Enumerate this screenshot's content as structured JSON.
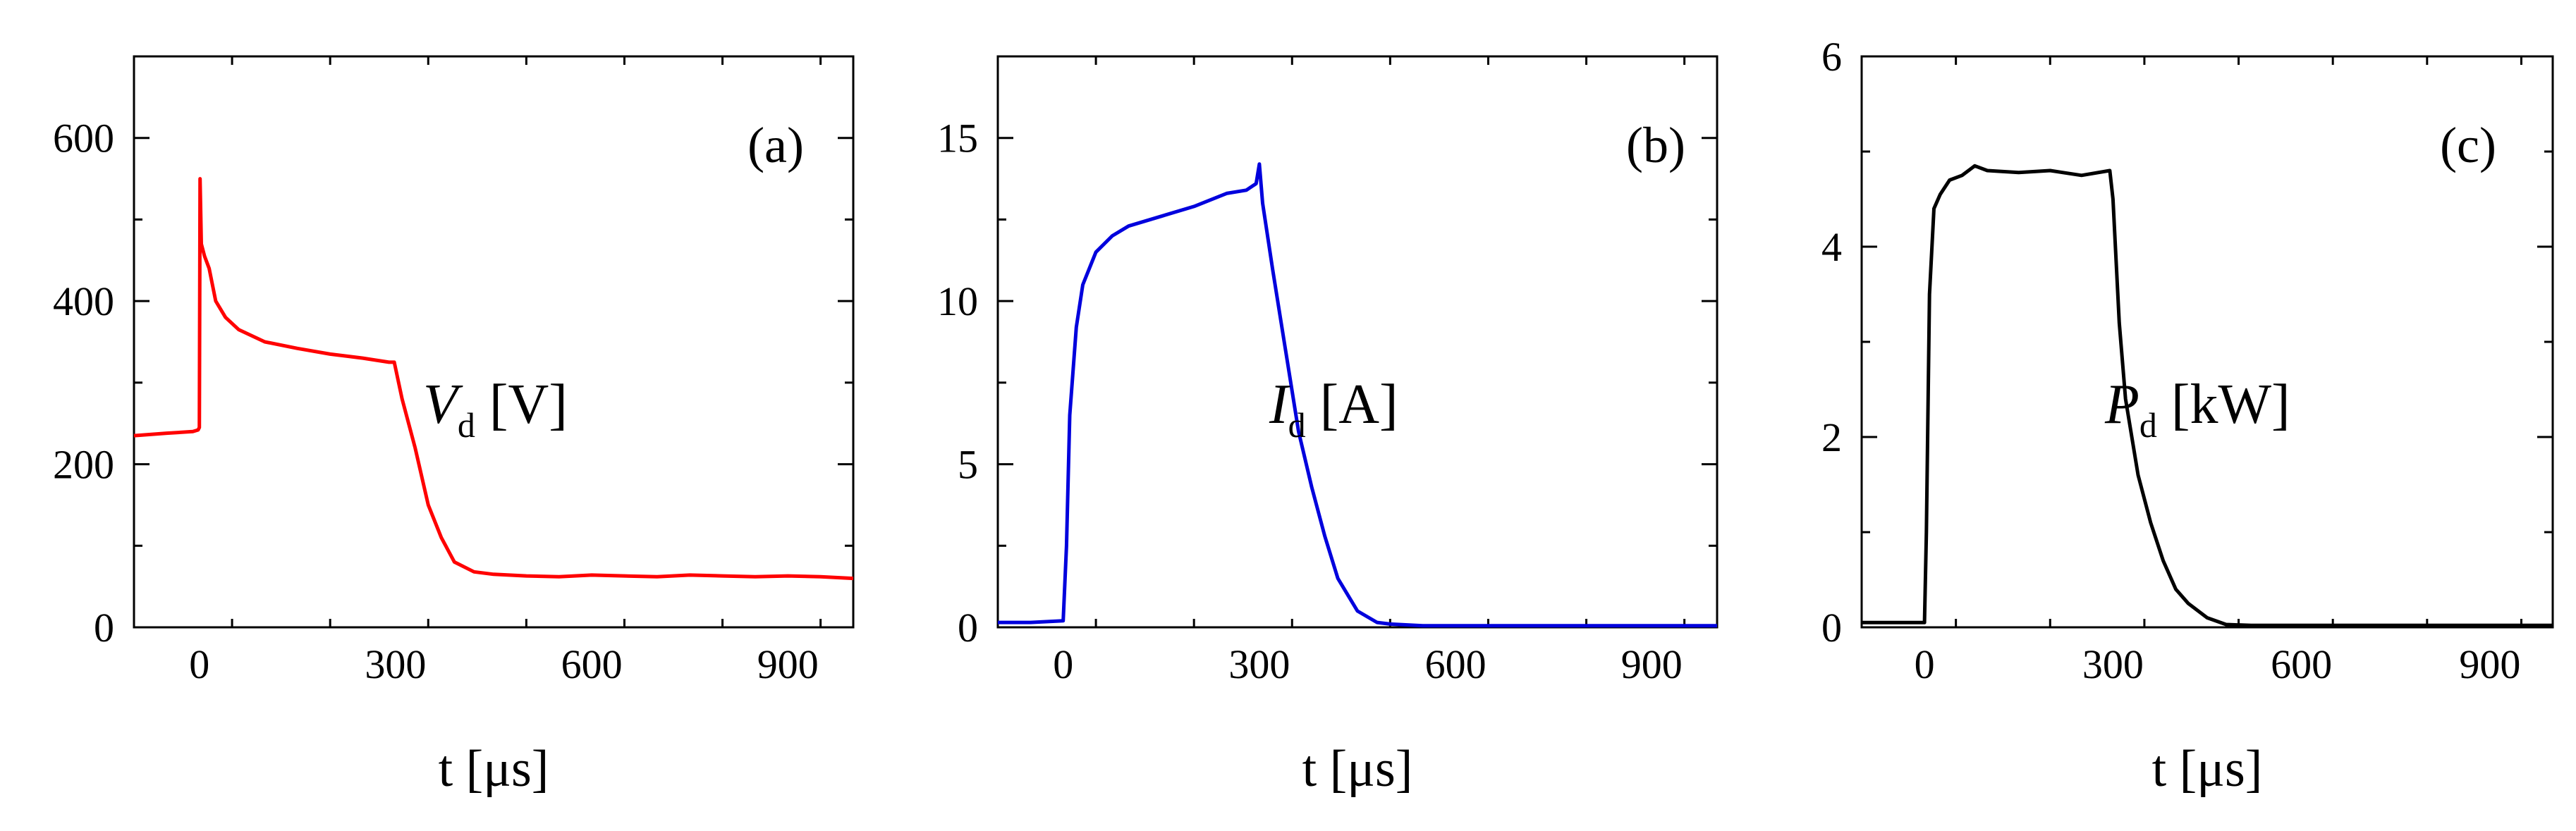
{
  "chart_data": [
    {
      "type": "line",
      "panel_label": "(a)",
      "annotation": {
        "symbol": "V",
        "subscript": "d",
        "unit": "[V]"
      },
      "xlabel": "t [μs]",
      "ylabel": "",
      "xlim": [
        -100,
        1000
      ],
      "ylim": [
        0,
        700
      ],
      "xticks": [
        0,
        300,
        600,
        900
      ],
      "yticks": [
        0,
        200,
        400,
        600
      ],
      "color": "#ff0000",
      "series": [
        {
          "name": "Vd",
          "x": [
            -100,
            -50,
            -10,
            -2,
            0,
            1,
            3,
            8,
            15,
            25,
            40,
            60,
            100,
            150,
            200,
            250,
            290,
            298,
            310,
            330,
            350,
            370,
            390,
            420,
            450,
            500,
            550,
            600,
            650,
            700,
            750,
            800,
            850,
            900,
            950,
            1000
          ],
          "y": [
            235,
            238,
            240,
            242,
            245,
            550,
            470,
            455,
            440,
            400,
            380,
            365,
            350,
            342,
            335,
            330,
            325,
            325,
            280,
            220,
            150,
            110,
            80,
            68,
            65,
            63,
            62,
            64,
            63,
            62,
            64,
            63,
            62,
            63,
            62,
            60
          ]
        }
      ]
    },
    {
      "type": "line",
      "panel_label": "(b)",
      "annotation": {
        "symbol": "I",
        "subscript": "d",
        "unit": "[A]"
      },
      "xlabel": "t [μs]",
      "ylabel": "",
      "xlim": [
        -100,
        1000
      ],
      "ylim": [
        0,
        17.5
      ],
      "xticks": [
        0,
        300,
        600,
        900
      ],
      "yticks": [
        0,
        5,
        10,
        15
      ],
      "color": "#0000dd",
      "series": [
        {
          "name": "Id",
          "x": [
            -100,
            -50,
            0,
            5,
            10,
            20,
            30,
            50,
            75,
            100,
            150,
            200,
            250,
            280,
            295,
            300,
            305,
            320,
            340,
            360,
            380,
            400,
            420,
            450,
            480,
            500,
            550,
            600,
            700,
            800,
            900,
            1000
          ],
          "y": [
            0.15,
            0.15,
            0.2,
            2.5,
            6.5,
            9.2,
            10.5,
            11.5,
            12.0,
            12.3,
            12.6,
            12.9,
            13.3,
            13.4,
            13.6,
            14.2,
            13.0,
            11.0,
            8.5,
            6.0,
            4.3,
            2.8,
            1.5,
            0.5,
            0.15,
            0.1,
            0.05,
            0.05,
            0.05,
            0.05,
            0.05,
            0.05
          ]
        }
      ]
    },
    {
      "type": "line",
      "panel_label": "(c)",
      "annotation": {
        "symbol": "P",
        "subscript": "d",
        "unit": "[kW]"
      },
      "xlabel": "t [μs]",
      "ylabel": "",
      "xlim": [
        -100,
        1000
      ],
      "ylim": [
        0,
        6
      ],
      "xticks": [
        0,
        300,
        600,
        900
      ],
      "yticks": [
        0,
        2,
        4,
        6
      ],
      "color": "#000000",
      "series": [
        {
          "name": "Pd",
          "x": [
            -100,
            -50,
            0,
            3,
            8,
            15,
            25,
            40,
            60,
            80,
            100,
            150,
            200,
            250,
            295,
            300,
            310,
            320,
            340,
            360,
            380,
            400,
            420,
            450,
            480,
            520,
            550,
            600,
            700,
            800,
            900,
            1000
          ],
          "y": [
            0.05,
            0.05,
            0.05,
            1.0,
            3.5,
            4.4,
            4.55,
            4.7,
            4.75,
            4.85,
            4.8,
            4.78,
            4.8,
            4.75,
            4.8,
            4.5,
            3.2,
            2.4,
            1.6,
            1.1,
            0.7,
            0.4,
            0.25,
            0.1,
            0.03,
            0.02,
            0.02,
            0.02,
            0.02,
            0.02,
            0.02,
            0.02
          ]
        }
      ]
    }
  ]
}
